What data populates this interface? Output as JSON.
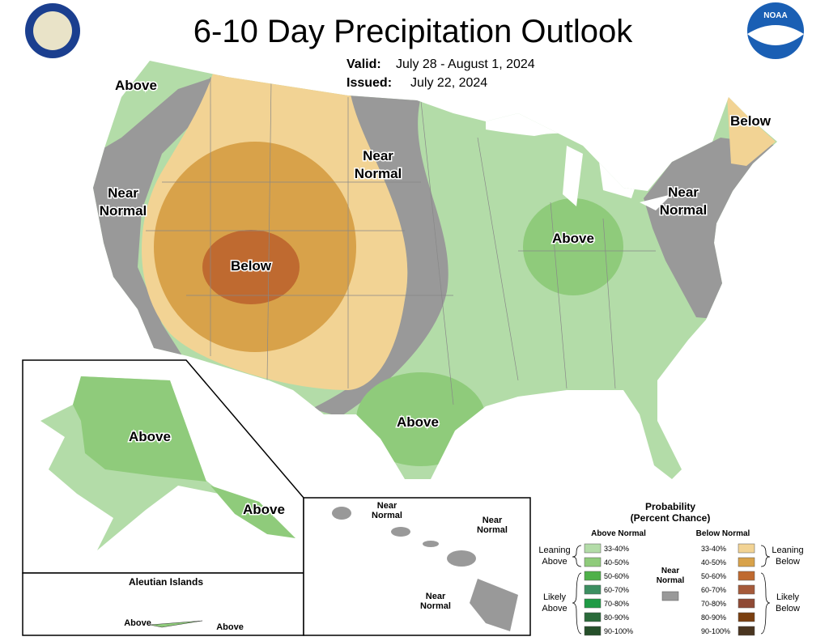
{
  "header": {
    "title": "6-10 Day Precipitation Outlook",
    "valid_label": "Valid:",
    "valid": "July 28 - August 1, 2024",
    "issued_label": "Issued:",
    "issued": "July 22, 2024",
    "noaa": "NOAA"
  },
  "map_labels": {
    "nw_above": [
      "Above"
    ],
    "west_near": [
      "Near",
      "Normal"
    ],
    "center_below": [
      "Below"
    ],
    "plains_near": [
      "Near",
      "Normal"
    ],
    "midwest_above": [
      "Above"
    ],
    "maine_below": [
      "Below"
    ],
    "ne_near": [
      "Near",
      "Normal"
    ],
    "texas_above": [
      "Above"
    ]
  },
  "alaska": {
    "interior_above": "Above",
    "southeast_above": "Above"
  },
  "aleutians": {
    "title": "Aleutian Islands",
    "west_above": "Above",
    "east_above": "Above"
  },
  "hawaii": {
    "kauai_near": [
      "Near",
      "Normal"
    ],
    "maui_near": [
      "Near",
      "Normal"
    ],
    "big_island_near": [
      "Near",
      "Normal"
    ]
  },
  "legend": {
    "title": [
      "Probability",
      "(Percent Chance)"
    ],
    "above_heading": "Above Normal",
    "below_heading": "Below Normal",
    "leaning_above": [
      "Leaning",
      "Above"
    ],
    "likely_above": [
      "Likely",
      "Above"
    ],
    "leaning_below": [
      "Leaning",
      "Below"
    ],
    "likely_below": [
      "Likely",
      "Below"
    ],
    "near_normal": {
      "lines": [
        "Near",
        "Normal"
      ],
      "color": "#999999"
    },
    "above_bins": [
      {
        "label": "33-40%",
        "color": "#b3dca8"
      },
      {
        "label": "40-50%",
        "color": "#8fcb7b"
      },
      {
        "label": "50-60%",
        "color": "#4fb04a"
      },
      {
        "label": "60-70%",
        "color": "#3c8f61"
      },
      {
        "label": "70-80%",
        "color": "#1f9b45"
      },
      {
        "label": "80-90%",
        "color": "#2a6a3a"
      },
      {
        "label": "90-100%",
        "color": "#254f2a"
      }
    ],
    "below_bins": [
      {
        "label": "33-40%",
        "color": "#f2d394"
      },
      {
        "label": "40-50%",
        "color": "#d8a24a"
      },
      {
        "label": "50-60%",
        "color": "#bf6a30"
      },
      {
        "label": "60-70%",
        "color": "#a55a3a"
      },
      {
        "label": "70-80%",
        "color": "#8f4a35"
      },
      {
        "label": "80-90%",
        "color": "#7a3f10"
      },
      {
        "label": "90-100%",
        "color": "#4a3520"
      }
    ]
  }
}
